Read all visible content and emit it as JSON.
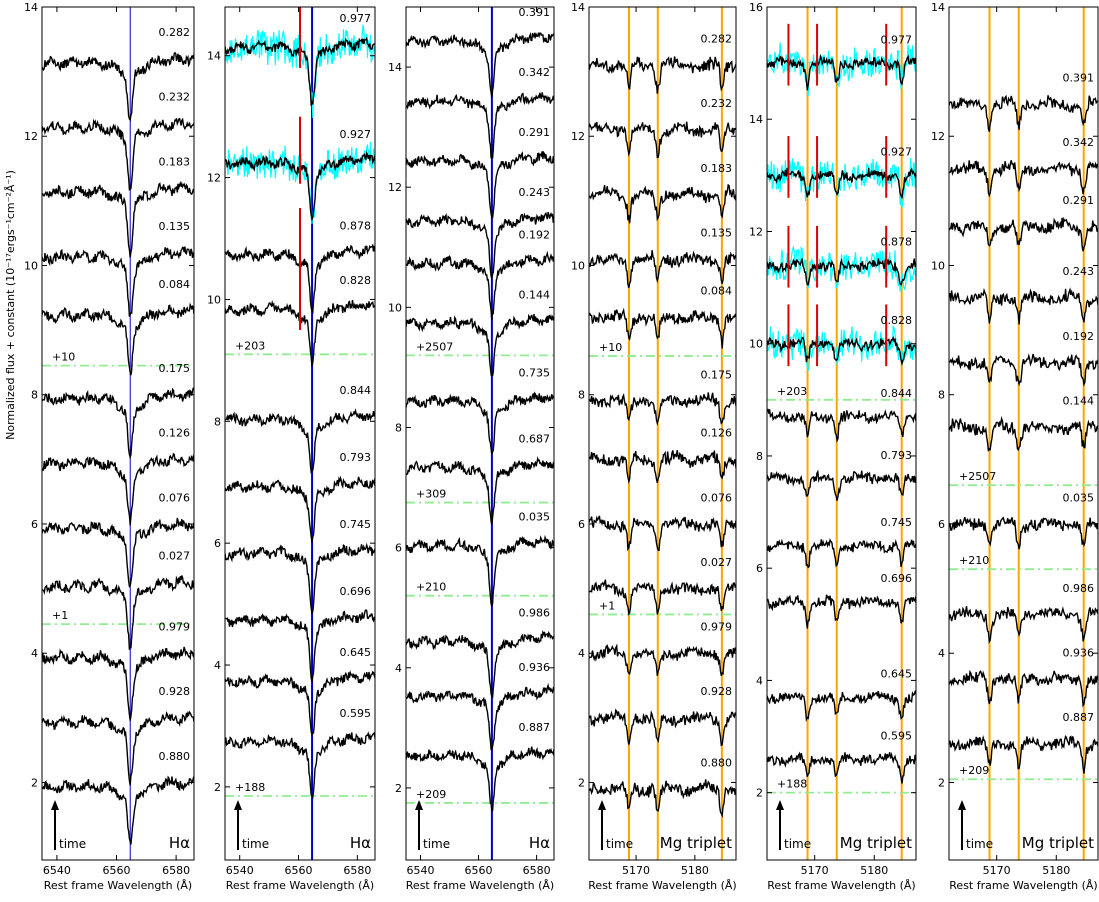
{
  "y_axis_label": "Normalized flux + constant (10⁻¹⁷ergs⁻¹cm⁻²Å⁻¹)",
  "x_axis_label": "Rest frame Wavelength (Å)",
  "time_label": "time",
  "colors": {
    "spectrum": "#000000",
    "halpha_line": "#0000cc",
    "mg_line": "#ffa500",
    "separator": "#90ee90",
    "raw_spectrum": "#00ffff",
    "marker": "#dd0000"
  },
  "chart_data": [
    {
      "type": "line",
      "region": "Halpha",
      "xlim": [
        6535,
        6586
      ],
      "ylim": [
        0.8,
        14
      ],
      "xticks": [
        6540,
        6560,
        6580
      ],
      "yticks": [
        2,
        4,
        6,
        8,
        10,
        12,
        14
      ],
      "label": "Hα",
      "line_label": "Hα",
      "ref_lines": [
        6564.6
      ],
      "separators": [
        {
          "y": 4.45,
          "label": "+1"
        },
        {
          "y": 8.45,
          "label": "+10"
        }
      ],
      "series": [
        {
          "name": "0.880",
          "offset": 2.0
        },
        {
          "name": "0.928",
          "offset": 3.0
        },
        {
          "name": "0.979",
          "offset": 4.0
        },
        {
          "name": "0.027",
          "offset": 5.1
        },
        {
          "name": "0.076",
          "offset": 6.0
        },
        {
          "name": "0.126",
          "offset": 7.0
        },
        {
          "name": "0.175",
          "offset": 8.0
        },
        {
          "name": "0.084",
          "offset": 9.3
        },
        {
          "name": "0.135",
          "offset": 10.2
        },
        {
          "name": "0.183",
          "offset": 11.2
        },
        {
          "name": "0.232",
          "offset": 12.2
        },
        {
          "name": "0.282",
          "offset": 13.2
        }
      ]
    },
    {
      "type": "line",
      "region": "Halpha",
      "xlim": [
        6535,
        6586
      ],
      "ylim": [
        0.8,
        14.8
      ],
      "xticks": [
        6540,
        6560,
        6580
      ],
      "yticks": [
        2,
        4,
        6,
        8,
        10,
        12,
        14
      ],
      "label": "Hα",
      "line_label": "Hα",
      "ref_lines": [
        6564.6
      ],
      "separators": [
        {
          "y": 1.85,
          "label": "+188"
        },
        {
          "y": 9.1,
          "label": "+203"
        }
      ],
      "series": [
        {
          "name": "0.595",
          "offset": 2.8
        },
        {
          "name": "0.645",
          "offset": 3.8
        },
        {
          "name": "0.696",
          "offset": 4.8
        },
        {
          "name": "0.745",
          "offset": 5.9
        },
        {
          "name": "0.793",
          "offset": 7.0
        },
        {
          "name": "0.844",
          "offset": 8.1
        },
        {
          "name": "0.828",
          "offset": 9.9
        },
        {
          "name": "0.878",
          "offset": 10.8
        },
        {
          "name": "0.927",
          "offset": 12.3
        },
        {
          "name": "0.977",
          "offset": 14.2
        }
      ]
    },
    {
      "type": "line",
      "region": "Halpha",
      "xlim": [
        6535,
        6586
      ],
      "ylim": [
        0.8,
        15
      ],
      "xticks": [
        6540,
        6560,
        6580
      ],
      "yticks": [
        2,
        4,
        6,
        8,
        10,
        12,
        14
      ],
      "label": "Hα",
      "line_label": "Hα",
      "ref_lines": [
        6564.6
      ],
      "separators": [
        {
          "y": 1.75,
          "label": "+209"
        },
        {
          "y": 5.2,
          "label": "+210"
        },
        {
          "y": 6.75,
          "label": "+309"
        },
        {
          "y": 9.2,
          "label": "+2507"
        }
      ],
      "series": [
        {
          "name": "0.887",
          "offset": 2.6
        },
        {
          "name": "0.936",
          "offset": 3.6
        },
        {
          "name": "0.986",
          "offset": 4.5
        },
        {
          "name": "0.035",
          "offset": 6.1
        },
        {
          "name": "0.687",
          "offset": 7.4
        },
        {
          "name": "0.735",
          "offset": 8.5
        },
        {
          "name": "0.144",
          "offset": 9.8
        },
        {
          "name": "0.192",
          "offset": 10.8
        },
        {
          "name": "0.243",
          "offset": 11.5
        },
        {
          "name": "0.291",
          "offset": 12.5
        },
        {
          "name": "0.342",
          "offset": 13.5
        },
        {
          "name": "0.391",
          "offset": 14.5
        }
      ]
    },
    {
      "type": "line",
      "region": "Mg",
      "xlim": [
        5162,
        5187
      ],
      "ylim": [
        0.8,
        14
      ],
      "xticks": [
        5170,
        5180
      ],
      "yticks": [
        2,
        4,
        6,
        8,
        10,
        12,
        14
      ],
      "label": "Mg triplet",
      "line_label": "Mg triplet",
      "ref_lines": [
        5168.8,
        5173.7,
        5184.6
      ],
      "separators": [
        {
          "y": 4.6,
          "label": "+1"
        },
        {
          "y": 8.6,
          "label": "+10"
        }
      ],
      "series": [
        {
          "name": "0.880",
          "offset": 1.9
        },
        {
          "name": "0.928",
          "offset": 3.0
        },
        {
          "name": "0.979",
          "offset": 4.0
        },
        {
          "name": "0.027",
          "offset": 5.0
        },
        {
          "name": "0.076",
          "offset": 6.0
        },
        {
          "name": "0.126",
          "offset": 7.0
        },
        {
          "name": "0.175",
          "offset": 7.9
        },
        {
          "name": "0.084",
          "offset": 9.2
        },
        {
          "name": "0.135",
          "offset": 10.1
        },
        {
          "name": "0.183",
          "offset": 11.1
        },
        {
          "name": "0.232",
          "offset": 12.1
        },
        {
          "name": "0.282",
          "offset": 13.1
        }
      ]
    },
    {
      "type": "line",
      "region": "Mg",
      "xlim": [
        5162,
        5187
      ],
      "ylim": [
        0.8,
        16
      ],
      "xticks": [
        5170,
        5180
      ],
      "yticks": [
        2,
        4,
        6,
        8,
        10,
        12,
        14,
        16
      ],
      "label": "Mg triplet",
      "line_label": "Mg triplet",
      "ref_lines": [
        5168.8,
        5173.7,
        5184.6
      ],
      "separators": [
        {
          "y": 2.0,
          "label": "+188"
        },
        {
          "y": 9.0,
          "label": "+203"
        }
      ],
      "series": [
        {
          "name": "0.595",
          "offset": 2.6
        },
        {
          "name": "0.645",
          "offset": 3.7
        },
        {
          "name": "0.696",
          "offset": 5.4
        },
        {
          "name": "0.745",
          "offset": 6.4
        },
        {
          "name": "0.793",
          "offset": 7.6
        },
        {
          "name": "0.844",
          "offset": 8.7
        },
        {
          "name": "0.828",
          "offset": 10.0
        },
        {
          "name": "0.878",
          "offset": 11.4
        },
        {
          "name": "0.927",
          "offset": 13.0
        },
        {
          "name": "0.977",
          "offset": 15.0
        }
      ]
    },
    {
      "type": "line",
      "region": "Mg",
      "xlim": [
        5162,
        5187
      ],
      "ylim": [
        0.8,
        14
      ],
      "xticks": [
        5170,
        5180
      ],
      "yticks": [
        2,
        4,
        6,
        8,
        10,
        12,
        14
      ],
      "label": "Mg triplet",
      "line_label": "Mg triplet",
      "ref_lines": [
        5168.8,
        5173.7,
        5184.6
      ],
      "separators": [
        {
          "y": 2.05,
          "label": "+209"
        },
        {
          "y": 5.3,
          "label": "+210"
        },
        {
          "y": 6.6,
          "label": "+2507"
        }
      ],
      "series": [
        {
          "name": "0.887",
          "offset": 2.6
        },
        {
          "name": "0.936",
          "offset": 3.6
        },
        {
          "name": "0.986",
          "offset": 4.6
        },
        {
          "name": "0.035",
          "offset": 6.0
        },
        {
          "name": "0.144",
          "offset": 7.5
        },
        {
          "name": "0.192",
          "offset": 8.5
        },
        {
          "name": "0.243",
          "offset": 9.5
        },
        {
          "name": "0.291",
          "offset": 10.6
        },
        {
          "name": "0.342",
          "offset": 11.5
        },
        {
          "name": "0.391",
          "offset": 12.5
        }
      ]
    }
  ]
}
